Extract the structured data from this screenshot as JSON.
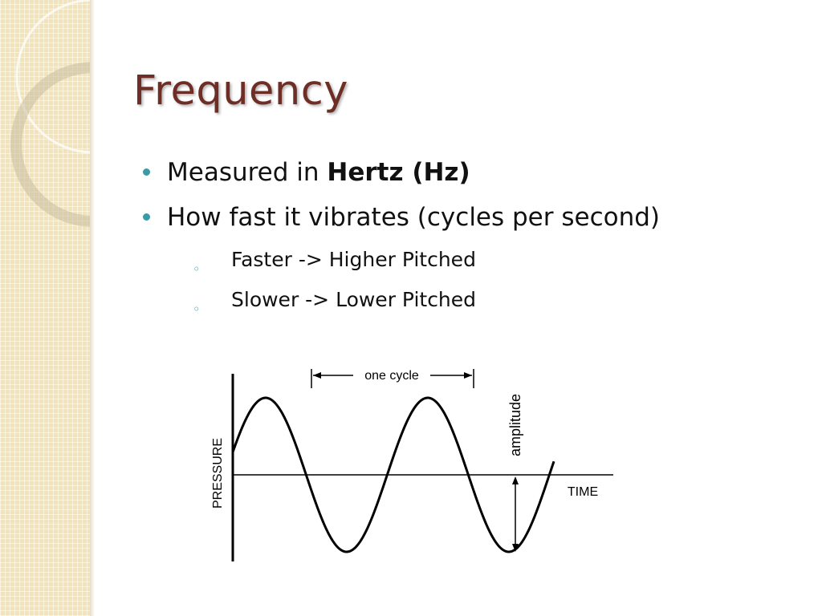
{
  "slide": {
    "title": "Frequency",
    "bullets": [
      {
        "text_plain": "Measured in ",
        "text_bold": "Hertz (Hz)"
      },
      {
        "text_plain": "How fast it vibrates (cycles per second)",
        "text_bold": ""
      }
    ],
    "sub_bullets": [
      {
        "text": "Faster -> Higher Pitched"
      },
      {
        "text": "Slower -> Lower Pitched"
      }
    ]
  },
  "diagram": {
    "label_cycle": "one cycle",
    "label_amplitude": "amplitude",
    "label_time": "TIME",
    "label_pressure": "PRESSURE"
  },
  "colors": {
    "title": "#6e2e26",
    "bullet_accent": "#3a9aa5",
    "sidebar": "#f1e3bc"
  }
}
